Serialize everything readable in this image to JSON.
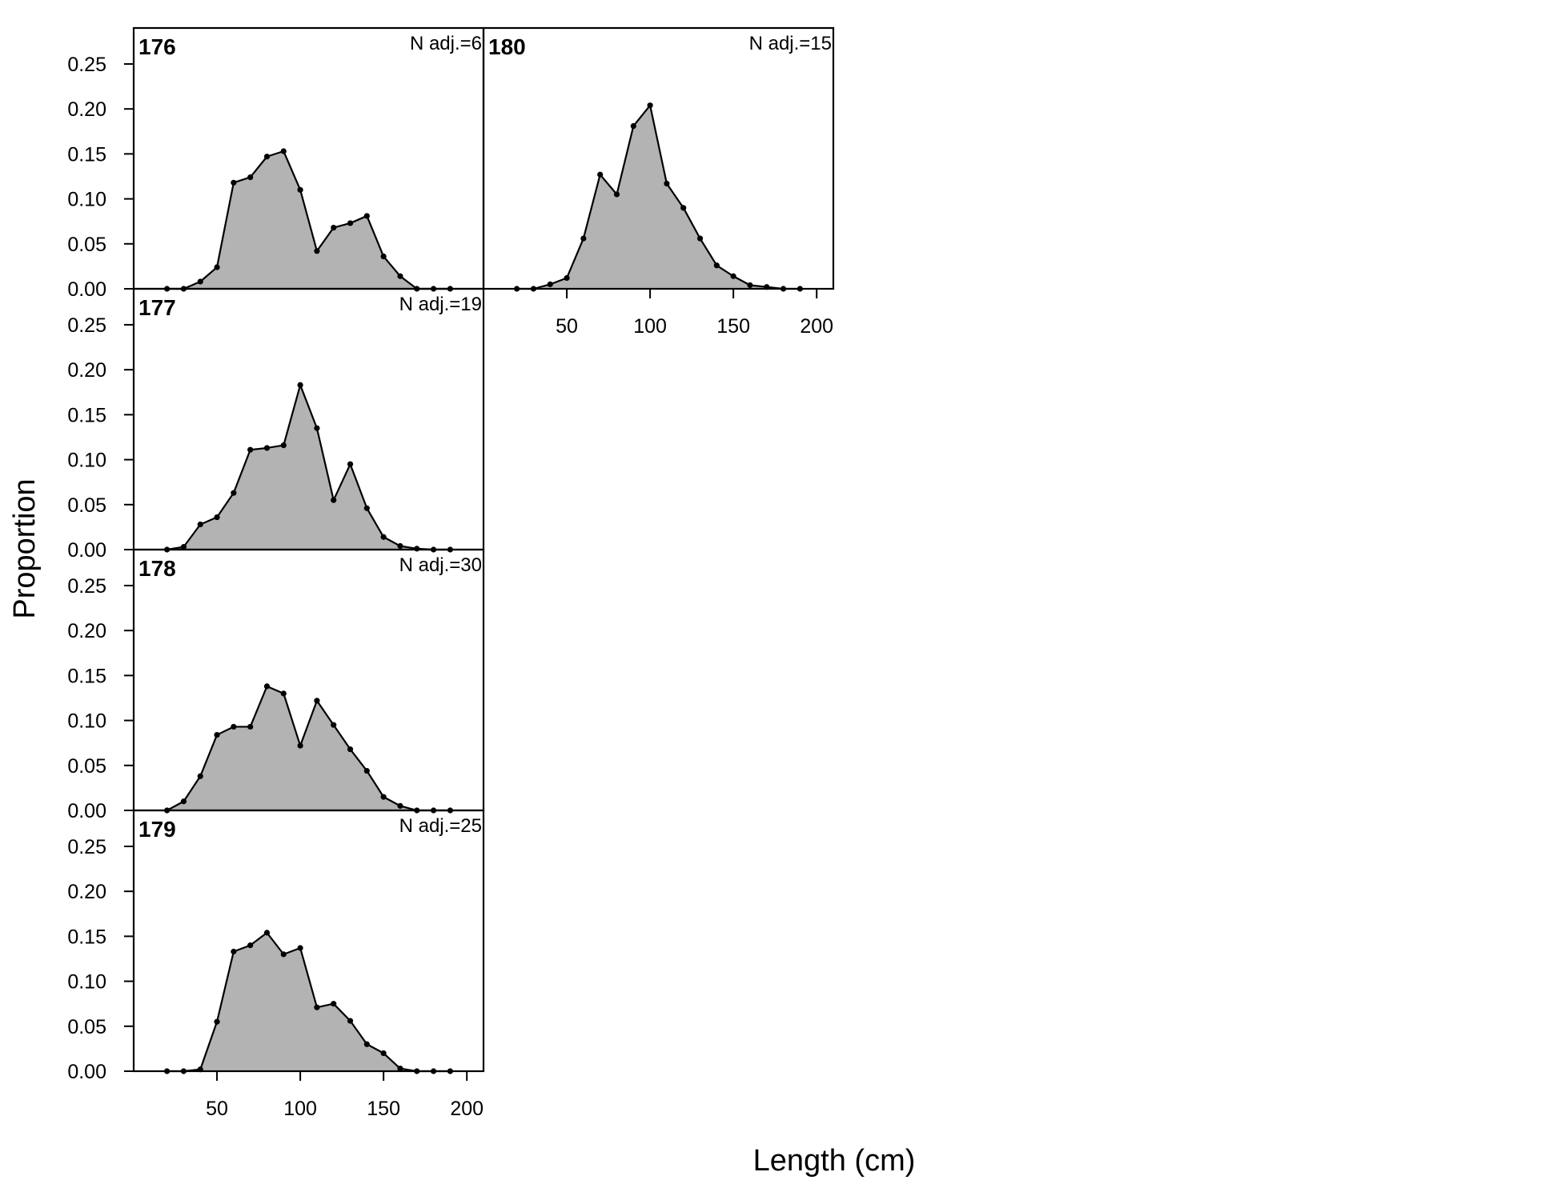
{
  "chart_data": {
    "type": "area",
    "xlabel": "Length (cm)",
    "ylabel": "Proportion",
    "xlim": [
      0,
      210
    ],
    "ylim": [
      0,
      0.29
    ],
    "x_ticks": [
      "50",
      "100",
      "150",
      "200"
    ],
    "y_ticks": [
      "0.00",
      "0.05",
      "0.10",
      "0.15",
      "0.20",
      "0.25"
    ],
    "x": [
      20,
      30,
      40,
      50,
      60,
      70,
      80,
      90,
      100,
      110,
      120,
      130,
      140,
      150,
      160,
      170,
      180,
      190
    ],
    "fill_color": "#b3b3b3",
    "line_color": "#000000",
    "panels": [
      {
        "id": "176",
        "n_label": "N adj.=6",
        "values": [
          0,
          0,
          0.008,
          0.024,
          0.118,
          0.124,
          0.147,
          0.153,
          0.11,
          0.042,
          0.068,
          0.073,
          0.081,
          0.036,
          0.014,
          0,
          0,
          0
        ]
      },
      {
        "id": "177",
        "n_label": "N adj.=19",
        "values": [
          0,
          0.003,
          0.028,
          0.036,
          0.063,
          0.111,
          0.113,
          0.116,
          0.183,
          0.135,
          0.055,
          0.095,
          0.046,
          0.014,
          0.004,
          0.001,
          0,
          0
        ]
      },
      {
        "id": "178",
        "n_label": "N adj.=30",
        "values": [
          0,
          0.01,
          0.038,
          0.084,
          0.093,
          0.093,
          0.138,
          0.13,
          0.072,
          0.122,
          0.095,
          0.068,
          0.044,
          0.015,
          0.005,
          0,
          0,
          0
        ]
      },
      {
        "id": "179",
        "n_label": "N adj.=25",
        "values": [
          0,
          0,
          0.002,
          0.055,
          0.133,
          0.14,
          0.154,
          0.13,
          0.137,
          0.071,
          0.075,
          0.056,
          0.03,
          0.02,
          0.003,
          0,
          0,
          0
        ]
      },
      {
        "id": "180",
        "n_label": "N adj.=15",
        "values": [
          0,
          0,
          0.005,
          0.012,
          0.056,
          0.127,
          0.105,
          0.181,
          0.204,
          0.117,
          0.09,
          0.056,
          0.026,
          0.014,
          0.004,
          0.002,
          0,
          0
        ]
      }
    ]
  }
}
